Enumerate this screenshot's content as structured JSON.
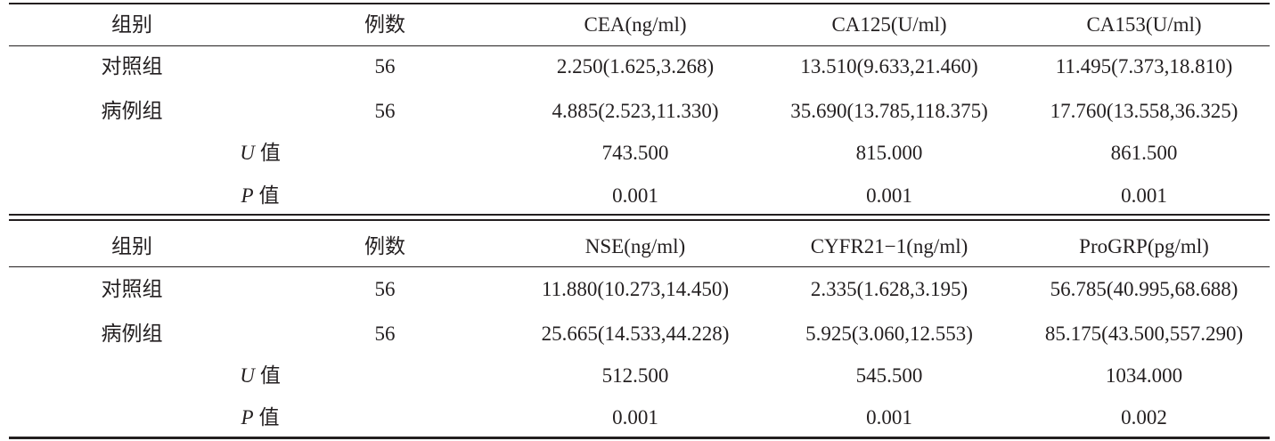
{
  "tables": [
    {
      "headers": {
        "group": "组别",
        "count": "例数",
        "markers": [
          "CEA(ng/ml)",
          "CA125(U/ml)",
          "CA153(U/ml)"
        ]
      },
      "rows": [
        {
          "group": "对照组",
          "count": "56",
          "values": [
            "2.250(1.625,3.268)",
            "13.510(9.633,21.460)",
            "11.495(7.373,18.810)"
          ]
        },
        {
          "group": "病例组",
          "count": "56",
          "values": [
            "4.885(2.523,11.330)",
            "35.690(13.785,118.375)",
            "17.760(13.558,36.325)"
          ]
        }
      ],
      "stats": [
        {
          "symbol": "U",
          "label": "值",
          "values": [
            "743.500",
            "815.000",
            "861.500"
          ]
        },
        {
          "symbol": "P",
          "label": "值",
          "values": [
            "0.001",
            "0.001",
            "0.001"
          ]
        }
      ]
    },
    {
      "headers": {
        "group": "组别",
        "count": "例数",
        "markers": [
          "NSE(ng/ml)",
          "CYFR21−1(ng/ml)",
          "ProGRP(pg/ml)"
        ]
      },
      "rows": [
        {
          "group": "对照组",
          "count": "56",
          "values": [
            "11.880(10.273,14.450)",
            "2.335(1.628,3.195)",
            "56.785(40.995,68.688)"
          ]
        },
        {
          "group": "病例组",
          "count": "56",
          "values": [
            "25.665(14.533,44.228)",
            "5.925(3.060,12.553)",
            "85.175(43.500,557.290)"
          ]
        }
      ],
      "stats": [
        {
          "symbol": "U",
          "label": "值",
          "values": [
            "512.500",
            "545.500",
            "1034.000"
          ]
        },
        {
          "symbol": "P",
          "label": "值",
          "values": [
            "0.001",
            "0.001",
            "0.002"
          ]
        }
      ]
    }
  ]
}
